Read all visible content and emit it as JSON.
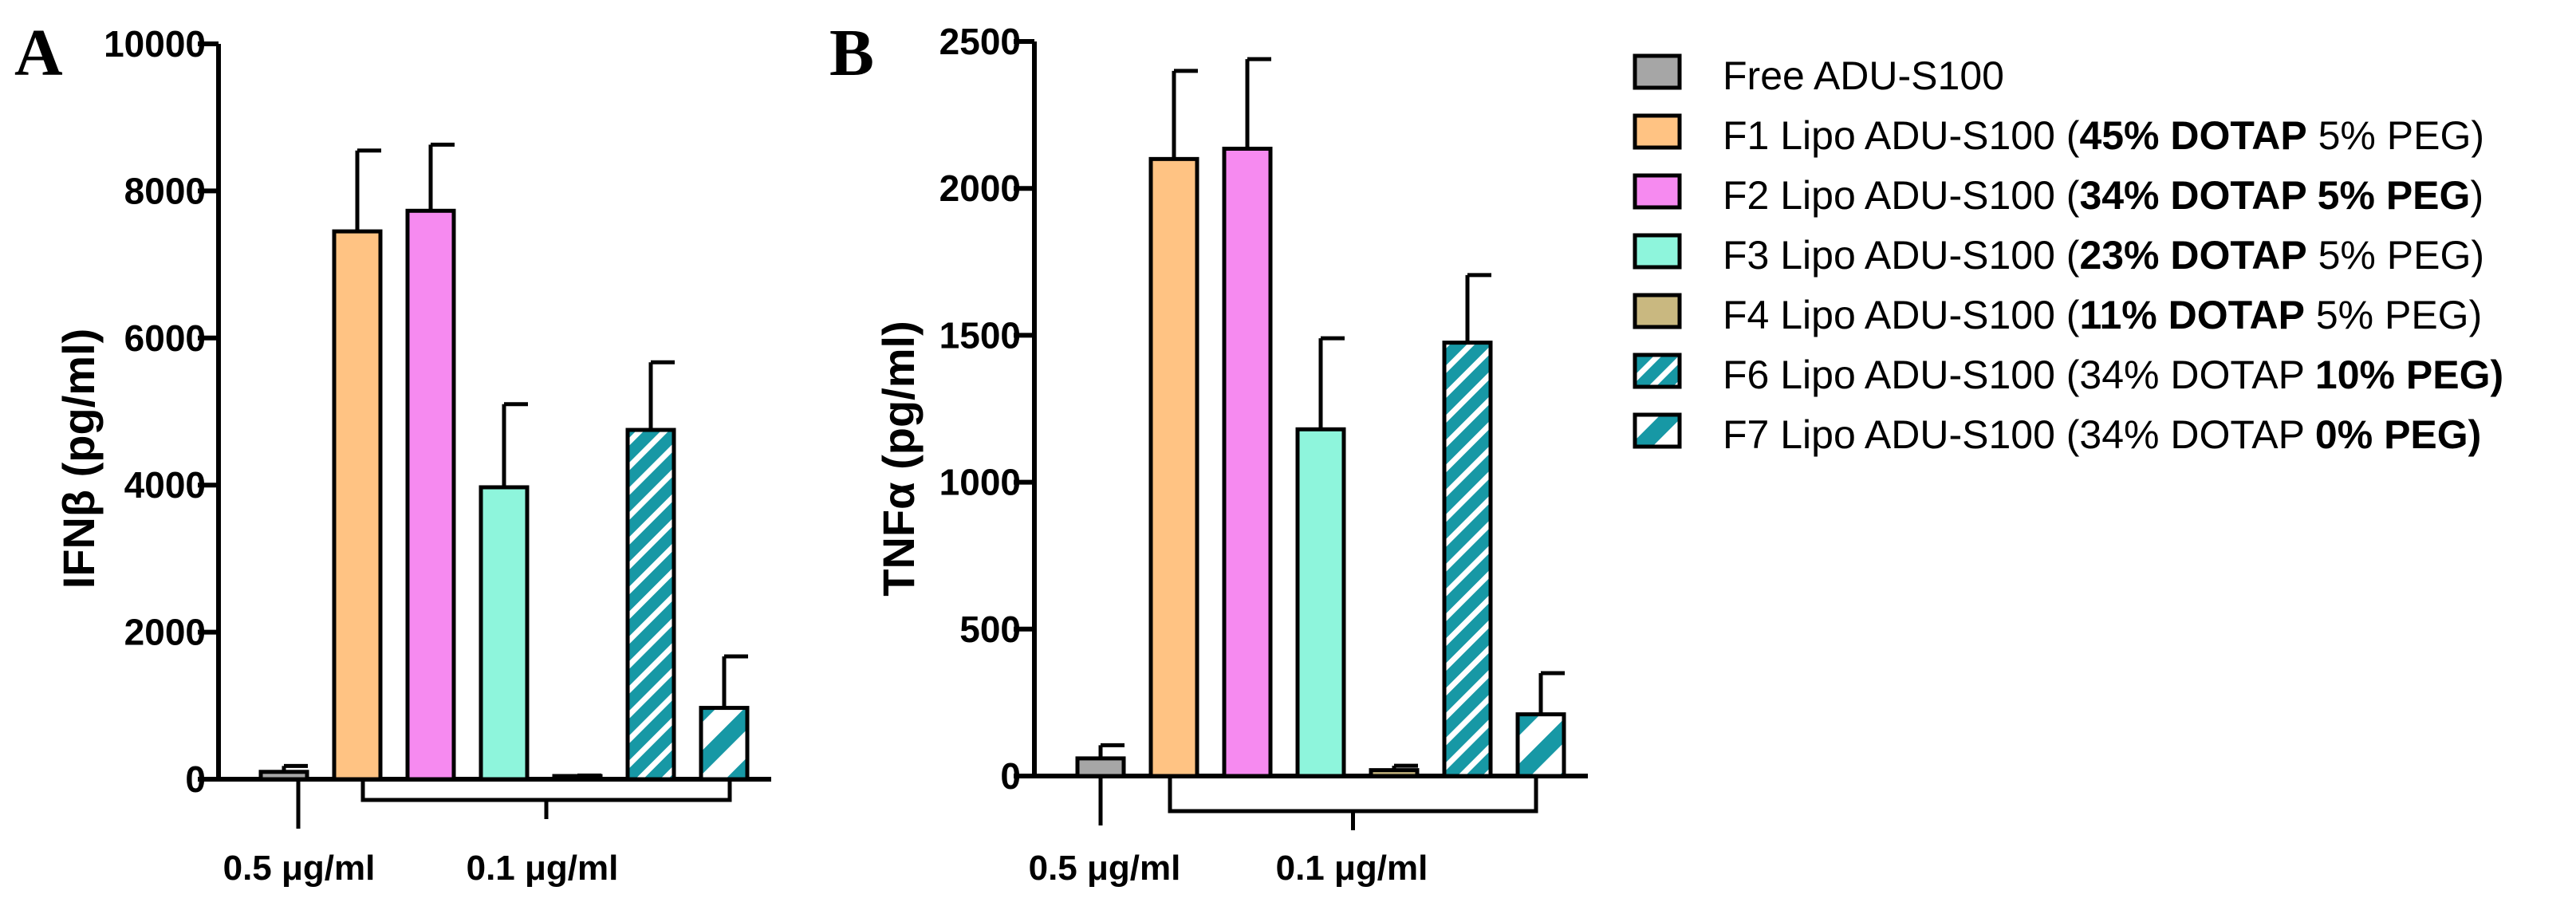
{
  "chart_data": [
    {
      "type": "bar",
      "panel": "A",
      "ylabel": "IFNβ (pg/ml)",
      "ylim": [
        0,
        10000
      ],
      "yticks": [
        "0",
        "2000",
        "4000",
        "6000",
        "8000",
        "10000"
      ],
      "group_labels": [
        "0.5 μg/ml",
        "0.1 μg/ml"
      ],
      "categories": [
        "Free ADU-S100",
        "F1 Lipo ADU-S100",
        "F2 Lipo ADU-S100",
        "F3 Lipo ADU-S100",
        "F4 Lipo ADU-S100",
        "F6 Lipo ADU-S100",
        "F7 Lipo ADU-S100"
      ],
      "values": [
        100,
        7450,
        7730,
        3970,
        30,
        4750,
        970
      ],
      "errors": [
        80,
        1100,
        900,
        1130,
        20,
        920,
        700
      ]
    },
    {
      "type": "bar",
      "panel": "B",
      "ylabel": "TNFα (pg/ml)",
      "ylim": [
        0,
        2500
      ],
      "yticks": [
        "0",
        "500",
        "1000",
        "1500",
        "2000",
        "2500"
      ],
      "group_labels": [
        "0.5 μg/ml",
        "0.1 μg/ml"
      ],
      "categories": [
        "Free ADU-S100",
        "F1 Lipo ADU-S100",
        "F2 Lipo ADU-S100",
        "F3 Lipo ADU-S100",
        "F4 Lipo ADU-S100",
        "F6 Lipo ADU-S100",
        "F7 Lipo ADU-S100"
      ],
      "values": [
        60,
        2100,
        2135,
        1180,
        20,
        1475,
        210
      ],
      "errors": [
        45,
        300,
        305,
        310,
        15,
        230,
        140
      ]
    }
  ],
  "series_styles": [
    {
      "fill": "#a6a6a6",
      "pattern": "none"
    },
    {
      "fill": "#ffc383",
      "pattern": "none"
    },
    {
      "fill": "#f68af0",
      "pattern": "none"
    },
    {
      "fill": "#8ef5dc",
      "pattern": "none"
    },
    {
      "fill": "#c9b880",
      "pattern": "none"
    },
    {
      "fill": "#1798a5",
      "pattern": "dense"
    },
    {
      "fill": "#1798a5",
      "pattern": "wide"
    }
  ],
  "legend": [
    [
      {
        "t": "Free ADU-S100",
        "b": false
      }
    ],
    [
      {
        "t": "F1 Lipo ADU-S100 (",
        "b": false
      },
      {
        "t": "45% DOTAP",
        "b": true
      },
      {
        "t": " 5% PEG)",
        "b": false
      }
    ],
    [
      {
        "t": "F2 Lipo ADU-S100 (",
        "b": false
      },
      {
        "t": "34% DOTAP 5% PEG",
        "b": true
      },
      {
        "t": ")",
        "b": false
      }
    ],
    [
      {
        "t": "F3 Lipo ADU-S100 (",
        "b": false
      },
      {
        "t": "23% DOTAP",
        "b": true
      },
      {
        "t": " 5% PEG)",
        "b": false
      }
    ],
    [
      {
        "t": "F4 Lipo ADU-S100 (",
        "b": false
      },
      {
        "t": "11% DOTAP",
        "b": true
      },
      {
        "t": " 5% PEG)",
        "b": false
      }
    ],
    [
      {
        "t": "F6 Lipo ADU-S100 (34% DOTAP ",
        "b": false
      },
      {
        "t": "10% PEG)",
        "b": true
      }
    ],
    [
      {
        "t": "F7 Lipo ADU-S100 (34% DOTAP ",
        "b": false
      },
      {
        "t": "0% PEG)",
        "b": true
      }
    ]
  ]
}
